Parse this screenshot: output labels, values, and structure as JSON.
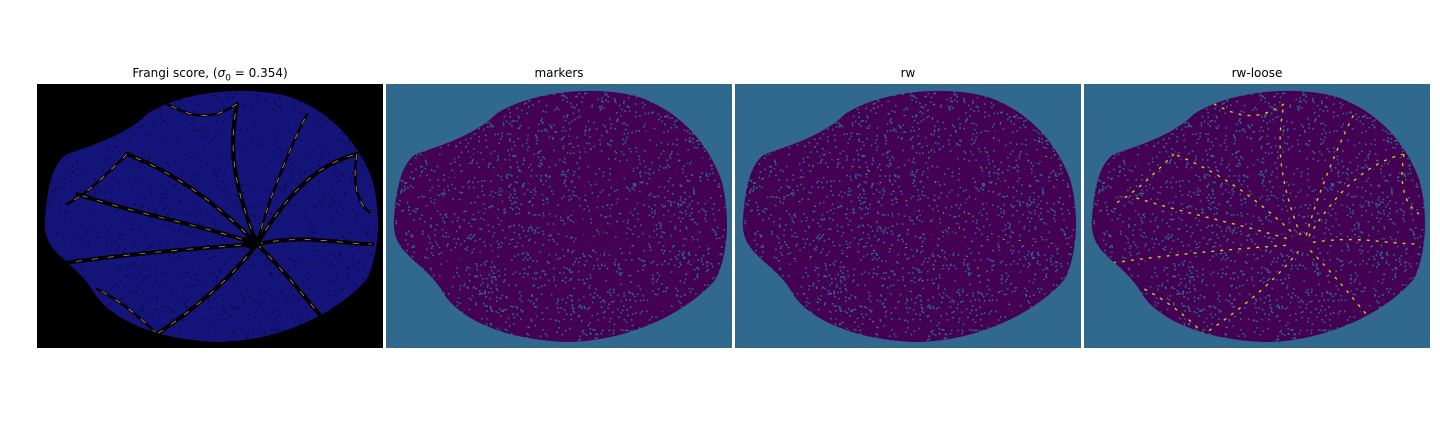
{
  "figure": {
    "panels": [
      {
        "title_prefix": "Frangi score, (",
        "title_sigma": "σ",
        "title_sub": "0",
        "title_suffix": " = 0.354)",
        "background_color": "#000000",
        "fundus_color": "#14147a",
        "vessel_color": "#000000",
        "highlight_color": "#e0a03c"
      },
      {
        "title": "markers",
        "background_color": "#31688e",
        "fundus_color": "#440154",
        "vessel_color": "#440154",
        "speckle_color": "#31688e"
      },
      {
        "title": "rw",
        "background_color": "#31688e",
        "fundus_color": "#440154",
        "vessel_color": "#440154",
        "speckle_color": "#31688e",
        "highlight_color": "#b5de2b"
      },
      {
        "title": "rw-loose",
        "background_color": "#31688e",
        "fundus_color": "#440154",
        "vessel_color": "#440154",
        "speckle_color": "#31688e",
        "highlight_color": "#dde318"
      }
    ]
  }
}
